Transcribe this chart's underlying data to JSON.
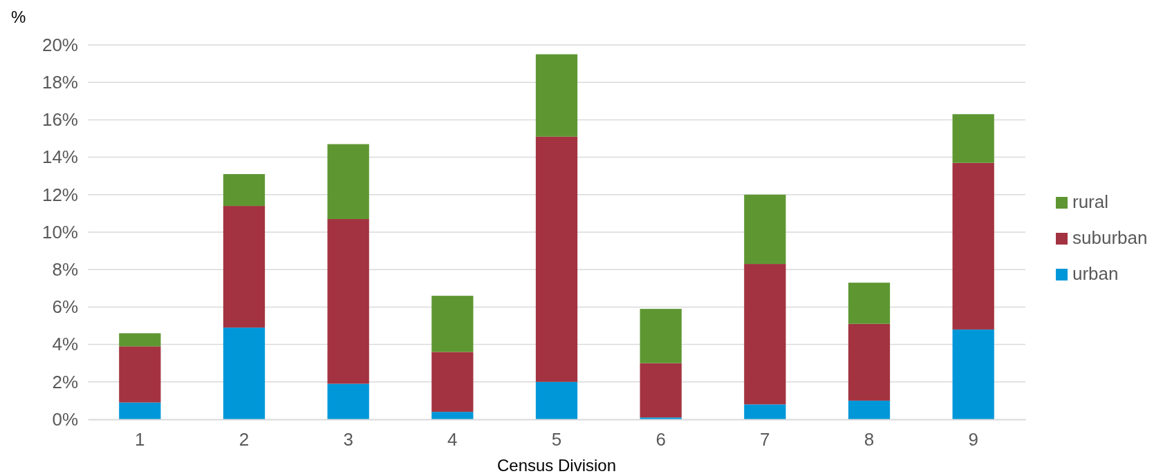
{
  "chart_data": {
    "type": "bar",
    "stacked": true,
    "ylabel": "%",
    "xlabel": "Census Division",
    "categories": [
      "1",
      "2",
      "3",
      "4",
      "5",
      "6",
      "7",
      "8",
      "9"
    ],
    "series": [
      {
        "name": "urban",
        "color": "#0097d9",
        "values": [
          0.9,
          4.9,
          1.9,
          0.4,
          2.0,
          0.1,
          0.8,
          1.0,
          4.8
        ]
      },
      {
        "name": "suburban",
        "color": "#a33340",
        "values": [
          3.0,
          6.5,
          8.8,
          3.2,
          13.1,
          2.9,
          7.5,
          4.1,
          8.9
        ]
      },
      {
        "name": "rural",
        "color": "#5e9732",
        "values": [
          0.7,
          1.7,
          4.0,
          3.0,
          4.4,
          2.9,
          3.7,
          2.2,
          2.6
        ]
      }
    ],
    "ylim": [
      0,
      20
    ],
    "yticks": [
      {
        "value": 0,
        "label": "0%"
      },
      {
        "value": 2,
        "label": "2%"
      },
      {
        "value": 4,
        "label": "4%"
      },
      {
        "value": 6,
        "label": "6%"
      },
      {
        "value": 8,
        "label": "8%"
      },
      {
        "value": 10,
        "label": "10%"
      },
      {
        "value": 12,
        "label": "12%"
      },
      {
        "value": 14,
        "label": "14%"
      },
      {
        "value": 16,
        "label": "16%"
      },
      {
        "value": 18,
        "label": "18%"
      },
      {
        "value": 20,
        "label": "20%"
      }
    ],
    "grid": "y",
    "legend": "right"
  }
}
